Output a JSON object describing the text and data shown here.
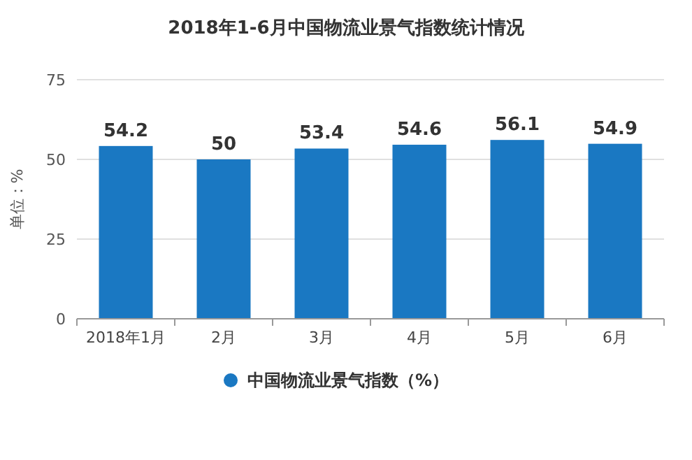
{
  "chart_data": {
    "type": "bar",
    "title": "2018年1-6月中国物流业景气指数统计情况",
    "ylabel": "单位：%",
    "categories": [
      "2018年1月",
      "2月",
      "3月",
      "4月",
      "5月",
      "6月"
    ],
    "series": [
      {
        "name": "中国物流业景气指数（%）",
        "color": "#1a78c2",
        "values": [
          54.2,
          50,
          53.4,
          54.6,
          56.1,
          54.9
        ]
      }
    ],
    "ylim": [
      0,
      75
    ],
    "yticks": [
      0,
      25,
      50,
      75
    ],
    "grid": "y",
    "legend": "bottom",
    "data_labels": true
  }
}
